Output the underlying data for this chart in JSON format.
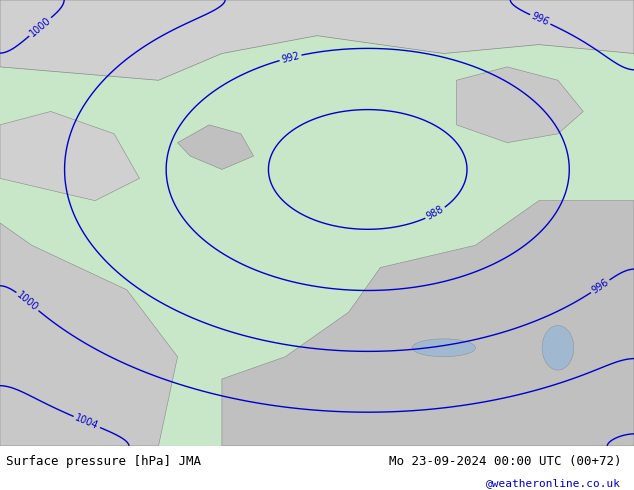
{
  "title_left": "Surface pressure [hPa] JMA",
  "title_right": "Mo 23-09-2024 00:00 UTC (00+72)",
  "credit": "@weatheronline.co.uk",
  "bg_color": "#c8e6c8",
  "land_color": "#90c090",
  "sea_color": "#c8e6c8",
  "ocean_bg": "#c8e6c8",
  "gray_color": "#cccccc",
  "contour_blue": "#0000cc",
  "contour_red": "#cc0000",
  "contour_black": "#000000",
  "figsize": [
    6.34,
    4.9
  ],
  "dpi": 100
}
